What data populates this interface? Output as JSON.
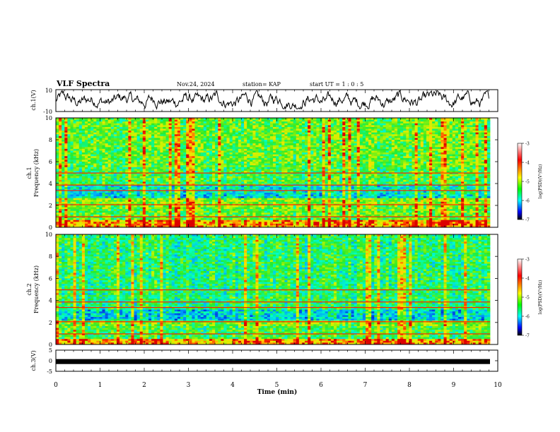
{
  "header": {
    "title": "VLF Spectra",
    "date": "Nov.24, 2024",
    "station": "station= KAP",
    "start": "start  UT =   1 : 0  : 5"
  },
  "colors": {
    "axis": "#000000",
    "colorbar": [
      "#ffffff",
      "#ff0000",
      "#ffff00",
      "#00ff00",
      "#00ffff",
      "#0000ff",
      "#000000"
    ]
  },
  "chart_data": [
    {
      "type": "line",
      "ylabel": "ch.1(V)",
      "ylim": [
        -10,
        10
      ],
      "yticks": [
        "10",
        "-10"
      ],
      "xlim": [
        0,
        10
      ]
    },
    {
      "type": "heatmap",
      "ylabel": "ch.1\nFrequency  (kHz)",
      "ylim": [
        0,
        10
      ],
      "yticks": [
        "0",
        "2",
        "4",
        "6",
        "8",
        "10"
      ],
      "xlim": [
        0,
        9.8
      ],
      "colorbar": {
        "label": "log(PSD)(V²/Hz)",
        "range": [
          -7,
          -3
        ],
        "ticks": [
          "-3",
          "-4",
          "-5",
          "-6",
          "-7"
        ]
      }
    },
    {
      "type": "heatmap",
      "ylabel": "ch.2\nFrequency  (kHz)",
      "ylim": [
        0,
        10
      ],
      "yticks": [
        "0",
        "2",
        "4",
        "6",
        "8",
        "10"
      ],
      "xlim": [
        0,
        9.8
      ],
      "colorbar": {
        "label": "log(PSD)(V²/Hz)",
        "range": [
          -7,
          -3
        ],
        "ticks": [
          "-3",
          "-4",
          "-5",
          "-6",
          "-7"
        ]
      }
    },
    {
      "type": "line",
      "ylabel": "ch.3(V)",
      "ylim": [
        -5,
        5
      ],
      "yticks": [
        "5",
        "0",
        "-5"
      ],
      "values_constant": -0.4,
      "xlabel": "Time  (min)",
      "xlim": [
        0,
        10
      ],
      "xticks": [
        "0",
        "1",
        "2",
        "3",
        "4",
        "5",
        "6",
        "7",
        "8",
        "9",
        "10"
      ]
    }
  ]
}
